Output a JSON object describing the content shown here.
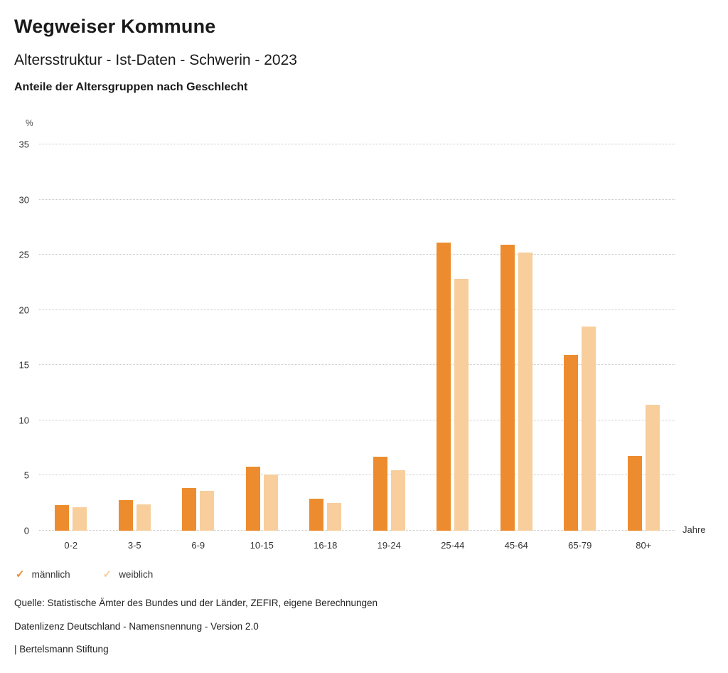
{
  "header": {
    "title": "Wegweiser Kommune",
    "subtitle": "Altersstruktur - Ist-Daten - Schwerin - 2023",
    "chart_heading": "Anteile der Altersgruppen nach Geschlecht"
  },
  "chart_data": {
    "type": "bar",
    "title": "Anteile der Altersgruppen nach Geschlecht",
    "categories": [
      "0-2",
      "3-5",
      "6-9",
      "10-15",
      "16-18",
      "19-24",
      "25-44",
      "45-64",
      "65-79",
      "80+"
    ],
    "series": [
      {
        "name": "männlich",
        "color": "#ED8C2E",
        "values": [
          2.3,
          2.8,
          3.9,
          5.8,
          2.9,
          6.7,
          26.1,
          25.9,
          15.9,
          6.8
        ]
      },
      {
        "name": "weiblich",
        "color": "#F7CE9C",
        "values": [
          2.1,
          2.4,
          3.6,
          5.1,
          2.5,
          5.5,
          22.8,
          25.2,
          18.5,
          11.4
        ]
      }
    ],
    "ylabel": "%",
    "xlabel": "Jahre",
    "ylim": [
      0,
      35
    ],
    "yticks": [
      0,
      5,
      10,
      15,
      20,
      25,
      30,
      35
    ],
    "grid": true,
    "grid_style": "dotted",
    "legend_position": "bottom",
    "legend_marker": "✓"
  },
  "footer": {
    "source": "Quelle: Statistische Ämter des Bundes und der Länder, ZEFIR, eigene Berechnungen",
    "license": "Datenlizenz Deutschland - Namensnennung - Version 2.0",
    "attribution": "| Bertelsmann Stiftung"
  }
}
